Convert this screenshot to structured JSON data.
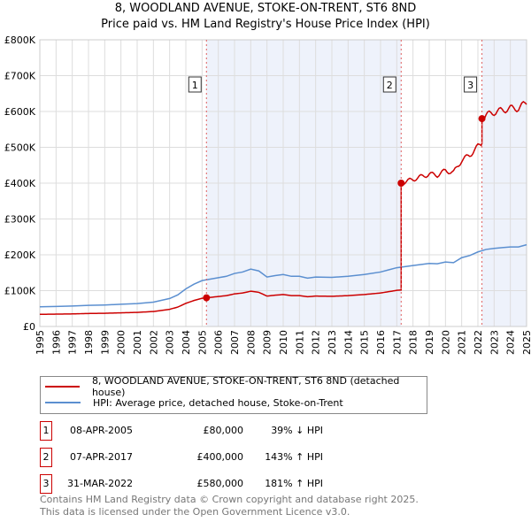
{
  "chart_data": {
    "type": "line",
    "title": "8, WOODLAND AVENUE, STOKE-ON-TRENT, ST6 8ND",
    "subtitle": "Price paid vs. HM Land Registry's House Price Index (HPI)",
    "xlim": [
      1995,
      2025
    ],
    "ylim": [
      0,
      800000
    ],
    "yticks": [
      0,
      100000,
      200000,
      300000,
      400000,
      500000,
      600000,
      700000,
      800000
    ],
    "ytick_labels": [
      "£0",
      "£100K",
      "£200K",
      "£300K",
      "£400K",
      "£500K",
      "£600K",
      "£700K",
      "£800K"
    ],
    "xticks": [
      "1995",
      "1996",
      "1997",
      "1998",
      "1999",
      "2000",
      "2001",
      "2002",
      "2003",
      "2004",
      "2005",
      "2006",
      "2007",
      "2008",
      "2009",
      "2010",
      "2011",
      "2012",
      "2013",
      "2014",
      "2015",
      "2016",
      "2017",
      "2018",
      "2019",
      "2020",
      "2021",
      "2022",
      "2023",
      "2024",
      "2025"
    ],
    "grid": true,
    "series": [
      {
        "name": "8, WOODLAND AVENUE, STOKE-ON-TRENT, ST6 8ND (detached house)",
        "color": "#cc0000"
      },
      {
        "name": "HPI: Average price, detached house, Stoke-on-Trent",
        "color": "#5b8fd0",
        "x": [
          1995,
          1996,
          1997,
          1998,
          1999,
          2000,
          2001,
          2002,
          2003,
          2003.5,
          2004,
          2004.5,
          2005,
          2005.5,
          2006,
          2006.5,
          2007,
          2007.5,
          2008,
          2008.5,
          2009,
          2009.5,
          2010,
          2010.5,
          2011,
          2011.5,
          2012,
          2013,
          2014,
          2015,
          2016,
          2016.5,
          2017,
          2017.5,
          2018,
          2019,
          2019.5,
          2020,
          2020.5,
          2021,
          2021.5,
          2022,
          2022.5,
          2023,
          2023.5,
          2024,
          2024.5,
          2025
        ],
        "y": [
          55000,
          56000,
          57000,
          59000,
          60000,
          62000,
          64000,
          68000,
          78000,
          88000,
          105000,
          118000,
          128000,
          132000,
          136000,
          140000,
          148000,
          152000,
          160000,
          155000,
          138000,
          142000,
          145000,
          140000,
          140000,
          135000,
          138000,
          137000,
          140000,
          145000,
          152000,
          158000,
          164000,
          167000,
          170000,
          176000,
          175000,
          180000,
          178000,
          192000,
          198000,
          208000,
          215000,
          218000,
          220000,
          222000,
          222000,
          228000
        ]
      }
    ],
    "sales": [
      {
        "n": "1",
        "date": "08-APR-2005",
        "x": 2005.27,
        "price": 80000,
        "price_label": "£80,000",
        "hpi": "39% ↓ HPI"
      },
      {
        "n": "2",
        "date": "07-APR-2017",
        "x": 2017.27,
        "price": 400000,
        "price_label": "£400,000",
        "hpi": "143% ↑ HPI"
      },
      {
        "n": "3",
        "date": "31-MAR-2022",
        "x": 2022.25,
        "price": 580000,
        "price_label": "£580,000",
        "hpi": "181% ↑ HPI"
      }
    ]
  },
  "footer": {
    "line1": "Contains HM Land Registry data © Crown copyright and database right 2025.",
    "line2": "This data is licensed under the Open Government Licence v3.0."
  }
}
